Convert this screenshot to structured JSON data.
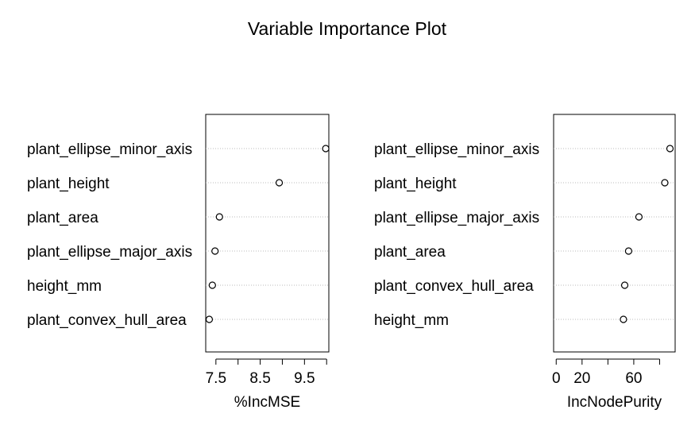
{
  "chart_data": {
    "type": "scatter",
    "title": "Variable Importance Plot",
    "panels": [
      {
        "xlabel": "%IncMSE",
        "xlim": [
          7.27,
          10.05
        ],
        "xticks": [
          7.5,
          8,
          8.5,
          9,
          9.5,
          10
        ],
        "xtick_labels": [
          "7.5",
          "",
          "8.5",
          "",
          "9.5",
          ""
        ],
        "categories": [
          "plant_ellipse_minor_axis",
          "plant_height",
          "plant_area",
          "plant_ellipse_major_axis",
          "height_mm",
          "plant_convex_hull_area"
        ],
        "values": [
          9.98,
          8.93,
          7.58,
          7.48,
          7.42,
          7.35
        ]
      },
      {
        "xlabel": "IncNodePurity",
        "xlim": [
          -2,
          92
        ],
        "xticks": [
          0,
          20,
          40,
          60,
          80
        ],
        "xtick_labels": [
          "0",
          "20",
          "",
          "60",
          ""
        ],
        "categories": [
          "plant_ellipse_minor_axis",
          "plant_height",
          "plant_ellipse_major_axis",
          "plant_area",
          "plant_convex_hull_area",
          "height_mm"
        ],
        "values": [
          88,
          84,
          64,
          56,
          53,
          52
        ]
      }
    ]
  }
}
